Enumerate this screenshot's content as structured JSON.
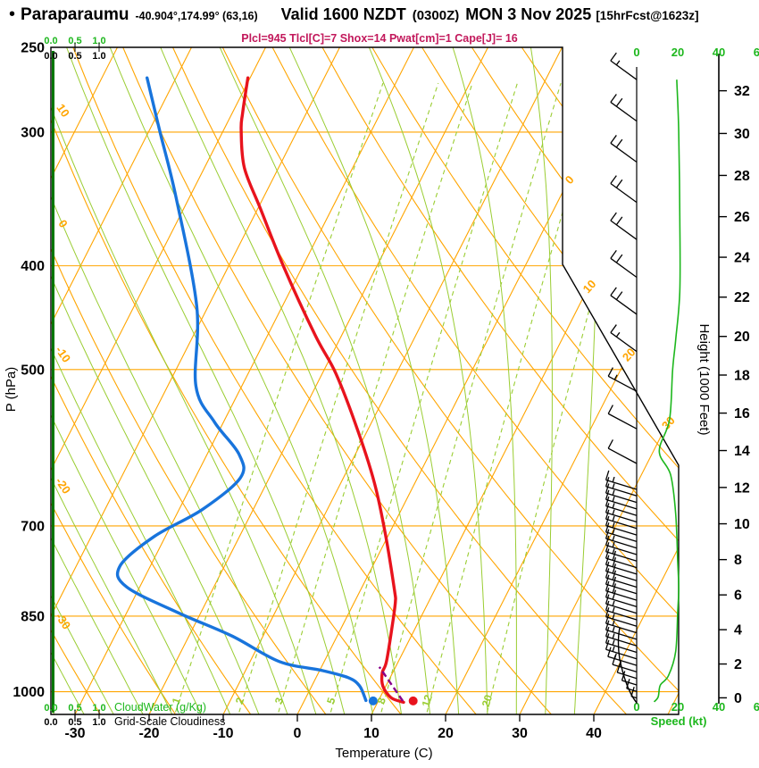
{
  "title": {
    "bullet": "•",
    "station": "Paraparaumu",
    "coords": "-40.904°,174.99° (63,16)",
    "valid": "Valid 1600 NZDT",
    "valid_z": "(0300Z)",
    "valid_date": "MON 3 Nov 2025",
    "fcst": "[15hrFcst@1623z]"
  },
  "indices_line": "Plcl=945 Tlcl[C]=7 Shox=14 Pwat[cm]=1 Cape[J]= 16",
  "axes": {
    "pressure_label": "P (hPa)",
    "pressure_ticks": [
      250,
      300,
      400,
      500,
      700,
      850,
      1000
    ],
    "isobar_lines": [
      300,
      400,
      500,
      700,
      850,
      1000
    ],
    "temp_label": "Temperature (C)",
    "temp_ticks": [
      -30,
      -20,
      -10,
      0,
      10,
      20,
      30,
      40
    ],
    "height_label": "Height (1000 Feet)",
    "height_ticks": [
      0,
      2,
      4,
      6,
      8,
      10,
      12,
      14,
      16,
      18,
      20,
      22,
      24,
      26,
      28,
      30,
      32
    ],
    "speed_label": "Speed (kt)",
    "speed_ticks": [
      0,
      20,
      40,
      60
    ],
    "cloudwater_label": "CloudWater (g/Kg)",
    "cloudiness_label": "Grid-Scale Cloudiness",
    "cw_scale": [
      "0.0",
      "0.5",
      "1.0"
    ]
  },
  "grid_labels": {
    "dry_adiabats": [
      10,
      0,
      -10,
      -20,
      -30
    ],
    "isotherms": [
      0,
      10,
      20,
      30
    ],
    "mixing_ratio": [
      1,
      2,
      3,
      5,
      8,
      12,
      20
    ]
  },
  "colors": {
    "grid_orange": "#FFA500",
    "adiabat_green": "#9ACD32",
    "bright_green": "#1DB71D",
    "dark_green": "#007700",
    "dewpoint_blue": "#1874DC",
    "temperature_red": "#E8131D",
    "parcel_purple": "#880088",
    "indices_crimson": "#C2185B",
    "ink": "#000000"
  },
  "chart_data": {
    "type": "skewt-log-p-sounding",
    "pressure_range_hPa": [
      250,
      1050
    ],
    "temp_axis_range_C": [
      -33,
      51
    ],
    "indices": {
      "Plcl": 945,
      "Tlcl_C": 7,
      "Shox": 14,
      "Pwat_cm": 1,
      "Cape_J": 16
    },
    "temperature_profile": {
      "p": [
        267,
        288,
        299,
        324,
        354,
        401,
        465,
        504,
        568,
        639,
        717,
        804,
        824,
        863,
        937,
        960,
        988,
        1013,
        1023
      ],
      "T": [
        -50.3,
        -48.6,
        -47.6,
        -44.6,
        -39.6,
        -32.5,
        -23.5,
        -18.2,
        -11.5,
        -5.4,
        -0.2,
        4.6,
        5.5,
        6.6,
        8.4,
        8.6,
        9.6,
        11.5,
        13.5
      ]
    },
    "dewpoint_profile": {
      "p": [
        267,
        299,
        346,
        437,
        518,
        560,
        600,
        631,
        676,
        716,
        763,
        798,
        844,
        887,
        937,
        955,
        970,
        987,
        1019
      ],
      "Td": [
        -63.9,
        -58.6,
        -51.7,
        -41.5,
        -36.2,
        -31.2,
        -25.7,
        -23.9,
        -26.9,
        -31.5,
        -34.1,
        -31.8,
        -23.0,
        -14.2,
        -6.1,
        0.2,
        4.3,
        6.4,
        8.3
      ]
    },
    "parcel_path": {
      "p": [
        1020,
        948
      ],
      "T": [
        13.3,
        7.8
      ]
    },
    "surface_dots": {
      "temperature": {
        "p": 1020,
        "T": 14.7
      },
      "dewpoint": {
        "p": 1020,
        "T": 9.3
      }
    },
    "wind_speed_profile": {
      "p": [
        268,
        300,
        360,
        423,
        469,
        500,
        557,
        596,
        627,
        682,
        757,
        801,
        841,
        917,
        966,
        986,
        1011,
        1022
      ],
      "kt": [
        19.5,
        20.5,
        21,
        21,
        19,
        17.5,
        16,
        11,
        16.5,
        19,
        20,
        20.5,
        20,
        19,
        15.5,
        11.5,
        10.5,
        8.5
      ]
    },
    "wind_barb_levels_sparse_p": [
      268,
      293,
      320,
      349,
      378,
      410,
      444,
      481,
      524,
      568,
      612
    ],
    "cloud_water_profile_value": 0,
    "legend": "red = temperature, blue = dew point, purple dashed = surface parcel to LCL, green = wind speed (kt), dark green = cloud water (0 g/Kg)"
  }
}
